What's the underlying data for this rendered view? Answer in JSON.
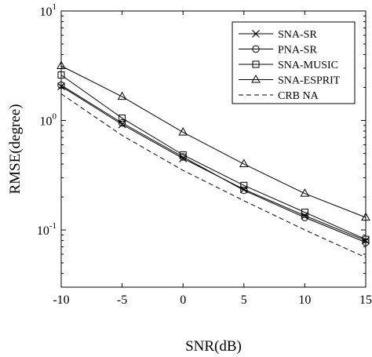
{
  "chart_data": {
    "type": "line",
    "xlabel": "SNR(dB)",
    "ylabel": "RMSE(degree)",
    "x": [
      -10,
      -5,
      0,
      5,
      10,
      15
    ],
    "xlim": [
      -10,
      15
    ],
    "ylim": [
      0.03,
      10
    ],
    "yscale": "log",
    "grid": false,
    "legend_position": "top-right",
    "x_ticks": [
      {
        "value": -10,
        "label": "-10"
      },
      {
        "value": -5,
        "label": "-5"
      },
      {
        "value": 0,
        "label": "0"
      },
      {
        "value": 5,
        "label": "5"
      },
      {
        "value": 10,
        "label": "10"
      },
      {
        "value": 15,
        "label": "15"
      }
    ],
    "y_ticks": [
      {
        "value": 0.1,
        "base": "10",
        "exponent": "-1"
      },
      {
        "value": 1,
        "base": "10",
        "exponent": "0"
      },
      {
        "value": 10,
        "base": "10",
        "exponent": "1"
      }
    ],
    "series": [
      {
        "name": "SNA-SR",
        "marker": "x",
        "dash": "solid",
        "values": [
          2.05,
          0.92,
          0.45,
          0.235,
          0.135,
          0.08
        ]
      },
      {
        "name": "PNA-SR",
        "marker": "circle",
        "dash": "solid",
        "values": [
          2.1,
          0.95,
          0.465,
          0.23,
          0.13,
          0.077
        ]
      },
      {
        "name": "SNA-MUSIC",
        "marker": "square",
        "dash": "solid",
        "values": [
          2.6,
          1.05,
          0.485,
          0.255,
          0.145,
          0.082
        ]
      },
      {
        "name": "SNA-ESPRIT",
        "marker": "triangle",
        "dash": "solid",
        "values": [
          3.15,
          1.65,
          0.78,
          0.4,
          0.215,
          0.13
        ]
      },
      {
        "name": "CRB NA",
        "marker": "none",
        "dash": "dashed",
        "values": [
          1.75,
          0.73,
          0.35,
          0.185,
          0.1,
          0.056
        ]
      }
    ]
  }
}
